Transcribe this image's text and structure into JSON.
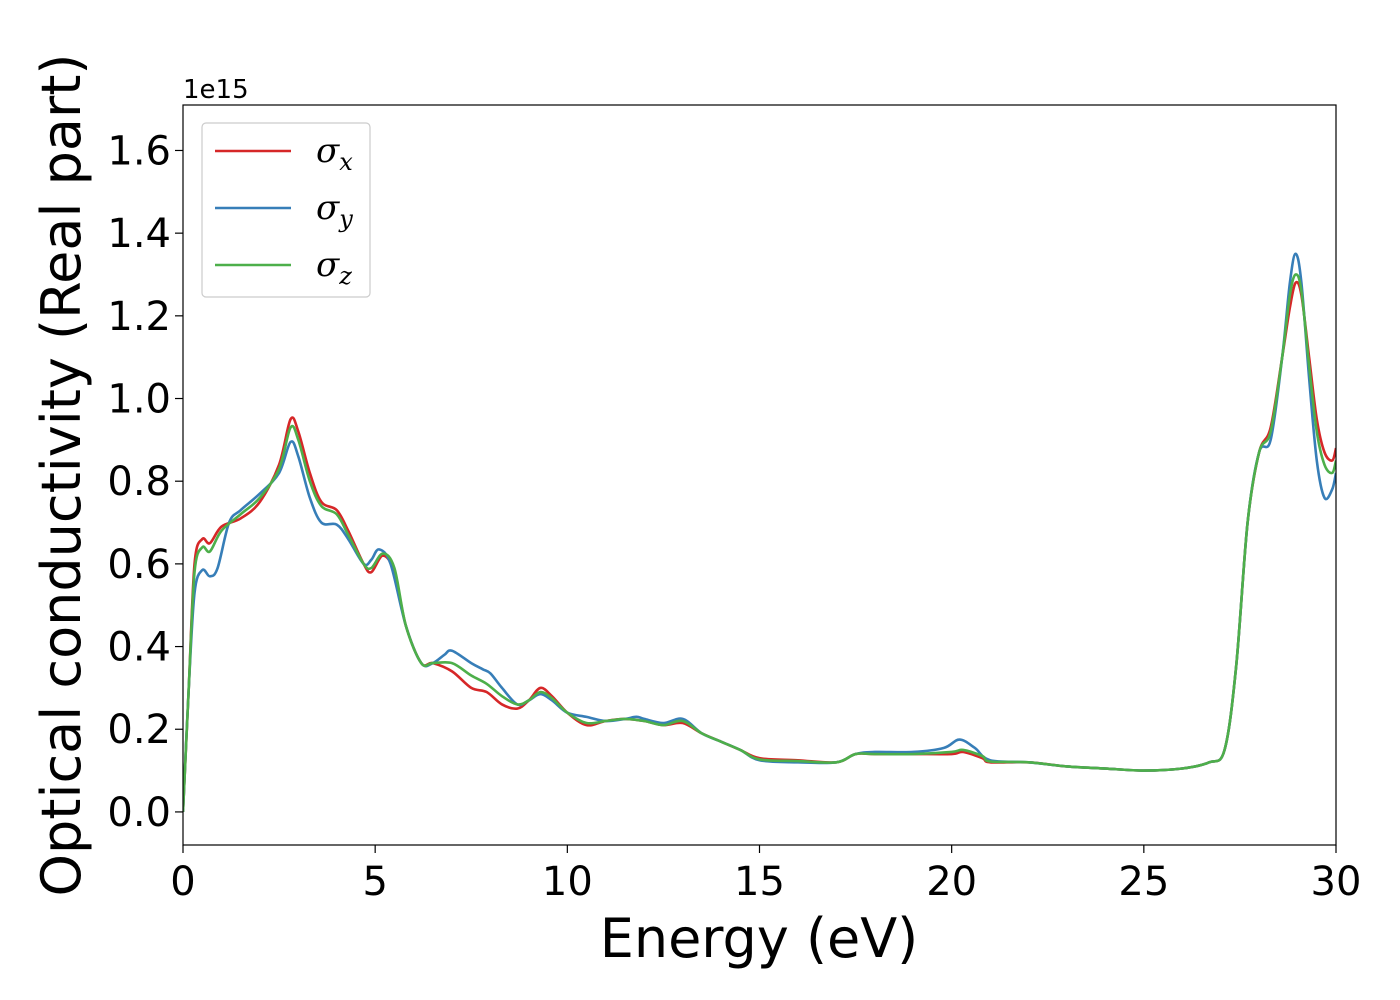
{
  "chart_data": {
    "type": "line",
    "xlabel": "Energy (eV)",
    "ylabel": "Optical conductivity (Real part)",
    "y_offset_text": "1e15",
    "xlim": [
      0,
      30
    ],
    "ylim": [
      -0.08,
      1.71
    ],
    "x_ticks": [
      0,
      5,
      10,
      15,
      20,
      25,
      30
    ],
    "x_tick_labels": [
      "0",
      "5",
      "10",
      "15",
      "20",
      "25",
      "30"
    ],
    "y_ticks": [
      0.0,
      0.2,
      0.4,
      0.6,
      0.8,
      1.0,
      1.2,
      1.4,
      1.6
    ],
    "y_tick_labels": [
      "0.0",
      "0.2",
      "0.4",
      "0.6",
      "0.8",
      "1.0",
      "1.2",
      "1.4",
      "1.6"
    ],
    "grid": false,
    "legend_position": "top-left",
    "series": [
      {
        "name": "σx",
        "symbol": "σ",
        "subscript": "x",
        "color": "#d62728",
        "points": [
          [
            0,
            0.0
          ],
          [
            0.15,
            0.3
          ],
          [
            0.3,
            0.6
          ],
          [
            0.5,
            0.66
          ],
          [
            0.7,
            0.65
          ],
          [
            1.0,
            0.69
          ],
          [
            1.5,
            0.71
          ],
          [
            2.0,
            0.75
          ],
          [
            2.5,
            0.84
          ],
          [
            2.8,
            0.95
          ],
          [
            3.0,
            0.92
          ],
          [
            3.3,
            0.82
          ],
          [
            3.6,
            0.75
          ],
          [
            4.0,
            0.73
          ],
          [
            4.3,
            0.68
          ],
          [
            4.7,
            0.6
          ],
          [
            4.9,
            0.58
          ],
          [
            5.2,
            0.62
          ],
          [
            5.5,
            0.58
          ],
          [
            5.8,
            0.45
          ],
          [
            6.2,
            0.36
          ],
          [
            6.5,
            0.36
          ],
          [
            7.0,
            0.34
          ],
          [
            7.5,
            0.3
          ],
          [
            7.9,
            0.29
          ],
          [
            8.3,
            0.26
          ],
          [
            8.7,
            0.25
          ],
          [
            9.0,
            0.27
          ],
          [
            9.3,
            0.3
          ],
          [
            9.6,
            0.28
          ],
          [
            10.0,
            0.24
          ],
          [
            10.5,
            0.21
          ],
          [
            11.0,
            0.22
          ],
          [
            11.5,
            0.225
          ],
          [
            12.0,
            0.22
          ],
          [
            12.5,
            0.21
          ],
          [
            13.0,
            0.215
          ],
          [
            13.5,
            0.19
          ],
          [
            14.0,
            0.17
          ],
          [
            14.5,
            0.15
          ],
          [
            15.0,
            0.13
          ],
          [
            16.0,
            0.125
          ],
          [
            17.0,
            0.12
          ],
          [
            17.5,
            0.14
          ],
          [
            18.0,
            0.14
          ],
          [
            19.0,
            0.14
          ],
          [
            20.0,
            0.14
          ],
          [
            20.3,
            0.145
          ],
          [
            20.8,
            0.13
          ],
          [
            21.0,
            0.12
          ],
          [
            22.0,
            0.12
          ],
          [
            23.0,
            0.11
          ],
          [
            24.0,
            0.105
          ],
          [
            25.0,
            0.1
          ],
          [
            26.0,
            0.105
          ],
          [
            26.7,
            0.12
          ],
          [
            27.1,
            0.15
          ],
          [
            27.4,
            0.35
          ],
          [
            27.7,
            0.7
          ],
          [
            28.0,
            0.87
          ],
          [
            28.3,
            0.93
          ],
          [
            28.6,
            1.1
          ],
          [
            28.8,
            1.22
          ],
          [
            28.95,
            1.28
          ],
          [
            29.1,
            1.25
          ],
          [
            29.3,
            1.1
          ],
          [
            29.5,
            0.95
          ],
          [
            29.7,
            0.87
          ],
          [
            29.9,
            0.85
          ],
          [
            30.0,
            0.88
          ]
        ]
      },
      {
        "name": "σy",
        "symbol": "σ",
        "subscript": "y",
        "color": "#377eb8",
        "points": [
          [
            0,
            0.0
          ],
          [
            0.15,
            0.3
          ],
          [
            0.3,
            0.53
          ],
          [
            0.5,
            0.585
          ],
          [
            0.7,
            0.57
          ],
          [
            0.9,
            0.59
          ],
          [
            1.2,
            0.7
          ],
          [
            1.5,
            0.73
          ],
          [
            2.0,
            0.77
          ],
          [
            2.5,
            0.82
          ],
          [
            2.8,
            0.895
          ],
          [
            3.0,
            0.86
          ],
          [
            3.3,
            0.76
          ],
          [
            3.6,
            0.7
          ],
          [
            4.0,
            0.695
          ],
          [
            4.3,
            0.66
          ],
          [
            4.7,
            0.6
          ],
          [
            4.9,
            0.61
          ],
          [
            5.1,
            0.635
          ],
          [
            5.4,
            0.6
          ],
          [
            5.8,
            0.45
          ],
          [
            6.2,
            0.36
          ],
          [
            6.5,
            0.36
          ],
          [
            6.8,
            0.38
          ],
          [
            7.0,
            0.39
          ],
          [
            7.5,
            0.36
          ],
          [
            7.8,
            0.345
          ],
          [
            8.0,
            0.335
          ],
          [
            8.3,
            0.3
          ],
          [
            8.7,
            0.26
          ],
          [
            9.0,
            0.27
          ],
          [
            9.3,
            0.285
          ],
          [
            9.6,
            0.27
          ],
          [
            10.0,
            0.24
          ],
          [
            10.5,
            0.23
          ],
          [
            11.0,
            0.22
          ],
          [
            11.5,
            0.225
          ],
          [
            11.8,
            0.23
          ],
          [
            12.0,
            0.225
          ],
          [
            12.5,
            0.215
          ],
          [
            13.0,
            0.225
          ],
          [
            13.5,
            0.19
          ],
          [
            14.0,
            0.17
          ],
          [
            14.5,
            0.15
          ],
          [
            15.0,
            0.125
          ],
          [
            16.0,
            0.12
          ],
          [
            17.0,
            0.12
          ],
          [
            17.5,
            0.14
          ],
          [
            18.0,
            0.145
          ],
          [
            19.0,
            0.145
          ],
          [
            19.8,
            0.155
          ],
          [
            20.2,
            0.175
          ],
          [
            20.6,
            0.155
          ],
          [
            21.0,
            0.125
          ],
          [
            22.0,
            0.12
          ],
          [
            23.0,
            0.11
          ],
          [
            24.0,
            0.105
          ],
          [
            25.0,
            0.1
          ],
          [
            26.0,
            0.105
          ],
          [
            26.7,
            0.12
          ],
          [
            27.1,
            0.15
          ],
          [
            27.4,
            0.35
          ],
          [
            27.7,
            0.7
          ],
          [
            28.0,
            0.87
          ],
          [
            28.3,
            0.9
          ],
          [
            28.6,
            1.1
          ],
          [
            28.8,
            1.28
          ],
          [
            28.95,
            1.35
          ],
          [
            29.1,
            1.28
          ],
          [
            29.3,
            1.05
          ],
          [
            29.5,
            0.85
          ],
          [
            29.7,
            0.76
          ],
          [
            29.9,
            0.78
          ],
          [
            30.0,
            0.82
          ]
        ]
      },
      {
        "name": "σz",
        "symbol": "σ",
        "subscript": "z",
        "color": "#4daf4a",
        "points": [
          [
            0,
            0.0
          ],
          [
            0.15,
            0.3
          ],
          [
            0.3,
            0.58
          ],
          [
            0.5,
            0.64
          ],
          [
            0.7,
            0.63
          ],
          [
            1.0,
            0.68
          ],
          [
            1.5,
            0.72
          ],
          [
            2.0,
            0.76
          ],
          [
            2.5,
            0.83
          ],
          [
            2.8,
            0.93
          ],
          [
            3.0,
            0.9
          ],
          [
            3.3,
            0.8
          ],
          [
            3.6,
            0.74
          ],
          [
            4.0,
            0.72
          ],
          [
            4.3,
            0.67
          ],
          [
            4.7,
            0.6
          ],
          [
            4.9,
            0.59
          ],
          [
            5.2,
            0.625
          ],
          [
            5.5,
            0.59
          ],
          [
            5.8,
            0.45
          ],
          [
            6.2,
            0.36
          ],
          [
            6.5,
            0.36
          ],
          [
            7.0,
            0.36
          ],
          [
            7.5,
            0.33
          ],
          [
            7.9,
            0.31
          ],
          [
            8.3,
            0.28
          ],
          [
            8.7,
            0.26
          ],
          [
            9.0,
            0.27
          ],
          [
            9.3,
            0.29
          ],
          [
            9.6,
            0.275
          ],
          [
            10.0,
            0.24
          ],
          [
            10.5,
            0.215
          ],
          [
            11.0,
            0.22
          ],
          [
            11.5,
            0.225
          ],
          [
            12.0,
            0.22
          ],
          [
            12.5,
            0.21
          ],
          [
            13.0,
            0.22
          ],
          [
            13.5,
            0.19
          ],
          [
            14.0,
            0.17
          ],
          [
            14.5,
            0.15
          ],
          [
            15.0,
            0.127
          ],
          [
            16.0,
            0.123
          ],
          [
            17.0,
            0.12
          ],
          [
            17.5,
            0.14
          ],
          [
            18.0,
            0.14
          ],
          [
            19.0,
            0.14
          ],
          [
            20.0,
            0.145
          ],
          [
            20.3,
            0.15
          ],
          [
            20.8,
            0.135
          ],
          [
            21.0,
            0.122
          ],
          [
            22.0,
            0.12
          ],
          [
            23.0,
            0.11
          ],
          [
            24.0,
            0.105
          ],
          [
            25.0,
            0.1
          ],
          [
            26.0,
            0.105
          ],
          [
            26.7,
            0.12
          ],
          [
            27.1,
            0.15
          ],
          [
            27.4,
            0.35
          ],
          [
            27.7,
            0.7
          ],
          [
            28.0,
            0.87
          ],
          [
            28.3,
            0.92
          ],
          [
            28.6,
            1.1
          ],
          [
            28.8,
            1.25
          ],
          [
            28.95,
            1.3
          ],
          [
            29.1,
            1.26
          ],
          [
            29.3,
            1.08
          ],
          [
            29.5,
            0.92
          ],
          [
            29.7,
            0.84
          ],
          [
            29.9,
            0.82
          ],
          [
            30.0,
            0.85
          ]
        ]
      }
    ]
  }
}
